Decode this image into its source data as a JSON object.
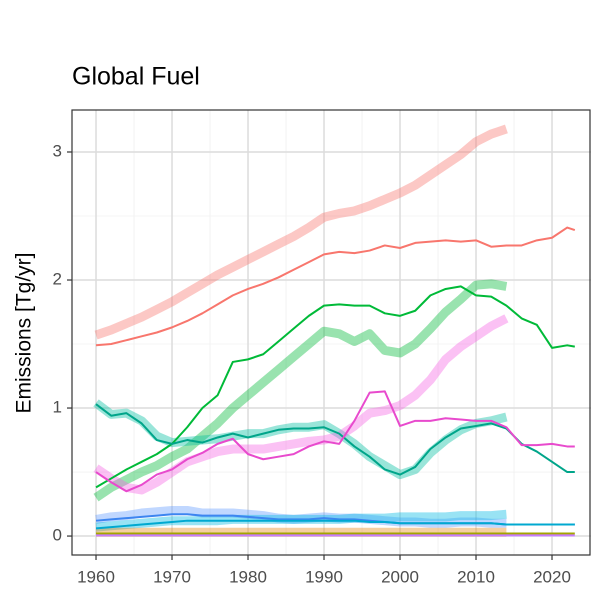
{
  "chart_data": {
    "type": "line",
    "title": "Global Fuel",
    "ylabel": "Emissions [Tg/yr]",
    "x": [
      1960,
      1962,
      1964,
      1966,
      1968,
      1970,
      1972,
      1974,
      1976,
      1978,
      1980,
      1982,
      1984,
      1986,
      1988,
      1990,
      1992,
      1994,
      1996,
      1998,
      2000,
      2002,
      2004,
      2006,
      2008,
      2010,
      2012,
      2014,
      2016,
      2018,
      2020,
      2022,
      2023
    ],
    "xlim": [
      1956.84,
      2025.13
    ],
    "ylim": [
      -0.148,
      3.328
    ],
    "xticks": [
      1960,
      1970,
      1980,
      1990,
      2000,
      2010,
      2020
    ],
    "yticks": [
      0,
      1,
      2,
      3
    ],
    "xminor": [
      1965,
      1975,
      1985,
      1995,
      2005,
      2015,
      2025
    ],
    "yminor": [
      0.5,
      1.5,
      2.5
    ],
    "grid": true,
    "series": [
      {
        "color": "#F8766D",
        "linewidth": 9,
        "opacity": 0.4,
        "values": [
          1.57,
          1.61,
          1.66,
          1.71,
          1.77,
          1.83,
          1.9,
          1.97,
          2.04,
          2.1,
          2.16,
          2.22,
          2.28,
          2.34,
          2.41,
          2.49,
          2.52,
          2.54,
          2.58,
          2.63,
          2.68,
          2.74,
          2.82,
          2.9,
          2.98,
          3.08,
          3.14,
          3.18,
          null,
          null,
          null,
          null,
          null
        ]
      },
      {
        "color": "#00BA38",
        "linewidth": 9,
        "opacity": 0.4,
        "values": [
          0.3,
          0.38,
          0.44,
          0.5,
          0.55,
          0.62,
          0.68,
          0.78,
          0.88,
          1.0,
          1.1,
          1.2,
          1.3,
          1.4,
          1.5,
          1.6,
          1.58,
          1.52,
          1.58,
          1.45,
          1.43,
          1.5,
          1.62,
          1.75,
          1.85,
          1.96,
          1.97,
          1.95,
          null,
          null,
          null,
          null,
          null
        ]
      },
      {
        "color": "#00BFA0",
        "linewidth": 9,
        "opacity": 0.4,
        "values": [
          1.04,
          0.95,
          0.96,
          0.9,
          0.78,
          0.73,
          0.74,
          0.75,
          0.76,
          0.78,
          0.8,
          0.8,
          0.83,
          0.85,
          0.85,
          0.87,
          0.8,
          0.72,
          0.62,
          0.55,
          0.48,
          0.52,
          0.65,
          0.75,
          0.83,
          0.88,
          0.9,
          0.93,
          null,
          null,
          null,
          null,
          null
        ]
      },
      {
        "color": "#F564E3",
        "linewidth": 9,
        "opacity": 0.4,
        "values": [
          0.53,
          0.45,
          0.38,
          0.36,
          0.42,
          0.5,
          0.58,
          0.62,
          0.66,
          0.68,
          0.68,
          0.68,
          0.7,
          0.72,
          0.74,
          0.75,
          0.78,
          0.86,
          0.96,
          0.98,
          1.02,
          1.1,
          1.22,
          1.38,
          1.48,
          1.56,
          1.64,
          1.7,
          null,
          null,
          null,
          null,
          null
        ]
      },
      {
        "color": "#619CFF",
        "linewidth": 9,
        "opacity": 0.4,
        "values": [
          0.13,
          0.15,
          0.16,
          0.18,
          0.19,
          0.2,
          0.2,
          0.18,
          0.18,
          0.18,
          0.17,
          0.16,
          0.14,
          0.13,
          0.14,
          0.15,
          0.14,
          0.14,
          0.13,
          0.12,
          0.11,
          0.11,
          0.1,
          0.1,
          0.11,
          0.11,
          0.1,
          0.1,
          null,
          null,
          null,
          null,
          null
        ]
      },
      {
        "color": "#00B9E3",
        "linewidth": 9,
        "opacity": 0.4,
        "values": [
          0.07,
          0.08,
          0.09,
          0.1,
          0.11,
          0.12,
          0.12,
          0.12,
          0.12,
          0.13,
          0.13,
          0.13,
          0.13,
          0.13,
          0.13,
          0.13,
          0.13,
          0.14,
          0.14,
          0.14,
          0.15,
          0.15,
          0.15,
          0.15,
          0.16,
          0.16,
          0.16,
          0.17,
          null,
          null,
          null,
          null,
          null
        ]
      },
      {
        "color": "#E68613",
        "linewidth": 9,
        "opacity": 0.4,
        "values": [
          0.03,
          0.03,
          0.03,
          0.03,
          0.03,
          0.03,
          0.03,
          0.03,
          0.03,
          0.03,
          0.03,
          0.03,
          0.03,
          0.03,
          0.03,
          0.03,
          0.03,
          0.03,
          0.03,
          0.03,
          0.03,
          0.03,
          0.03,
          0.03,
          0.03,
          0.03,
          0.03,
          0.03,
          null,
          null,
          null,
          null,
          null
        ]
      },
      {
        "color": "#F8766D",
        "linewidth": 2,
        "opacity": 1,
        "values": [
          1.49,
          1.5,
          1.53,
          1.56,
          1.59,
          1.63,
          1.68,
          1.74,
          1.81,
          1.88,
          1.93,
          1.97,
          2.02,
          2.08,
          2.14,
          2.2,
          2.22,
          2.21,
          2.23,
          2.27,
          2.25,
          2.29,
          2.3,
          2.31,
          2.3,
          2.31,
          2.26,
          2.27,
          2.27,
          2.31,
          2.33,
          2.41,
          2.39
        ]
      },
      {
        "color": "#00BA38",
        "linewidth": 2,
        "opacity": 1,
        "values": [
          0.38,
          0.45,
          0.52,
          0.58,
          0.64,
          0.72,
          0.85,
          1.0,
          1.1,
          1.36,
          1.38,
          1.42,
          1.52,
          1.62,
          1.72,
          1.8,
          1.81,
          1.8,
          1.8,
          1.74,
          1.72,
          1.76,
          1.88,
          1.93,
          1.95,
          1.88,
          1.87,
          1.8,
          1.7,
          1.65,
          1.47,
          1.49,
          1.48
        ]
      },
      {
        "color": "#00A58A",
        "linewidth": 2,
        "opacity": 1,
        "values": [
          1.03,
          0.94,
          0.96,
          0.88,
          0.75,
          0.72,
          0.75,
          0.73,
          0.77,
          0.8,
          0.77,
          0.8,
          0.83,
          0.84,
          0.84,
          0.85,
          0.8,
          0.7,
          0.62,
          0.52,
          0.48,
          0.54,
          0.68,
          0.77,
          0.84,
          0.86,
          0.88,
          0.84,
          0.72,
          0.66,
          0.58,
          0.5,
          0.5
        ]
      },
      {
        "color": "#E84ACD",
        "linewidth": 2,
        "opacity": 1,
        "values": [
          0.5,
          0.42,
          0.35,
          0.4,
          0.48,
          0.52,
          0.6,
          0.65,
          0.72,
          0.76,
          0.64,
          0.6,
          0.62,
          0.64,
          0.7,
          0.74,
          0.72,
          0.9,
          1.12,
          1.13,
          0.86,
          0.9,
          0.9,
          0.92,
          0.91,
          0.9,
          0.9,
          0.85,
          0.71,
          0.71,
          0.72,
          0.7,
          0.7
        ]
      },
      {
        "color": "#3D85F0",
        "linewidth": 2,
        "opacity": 1,
        "values": [
          0.12,
          0.13,
          0.14,
          0.15,
          0.16,
          0.17,
          0.17,
          0.16,
          0.16,
          0.16,
          0.15,
          0.14,
          0.13,
          0.13,
          0.13,
          0.14,
          0.13,
          0.13,
          0.12,
          0.11,
          0.1,
          0.1,
          0.1,
          0.1,
          0.1,
          0.1,
          0.1,
          0.09,
          0.09,
          0.09,
          0.09,
          0.09,
          0.09
        ]
      },
      {
        "color": "#00A9D0",
        "linewidth": 2,
        "opacity": 1,
        "values": [
          0.06,
          0.07,
          0.08,
          0.09,
          0.1,
          0.11,
          0.12,
          0.12,
          0.12,
          0.12,
          0.12,
          0.12,
          0.12,
          0.12,
          0.12,
          0.12,
          0.12,
          0.12,
          0.11,
          0.11,
          0.1,
          0.1,
          0.1,
          0.1,
          0.1,
          0.1,
          0.1,
          0.09,
          0.09,
          0.09,
          0.09,
          0.09,
          0.09
        ]
      },
      {
        "color": "#A3A500",
        "linewidth": 2,
        "opacity": 1,
        "values": [
          0.02,
          0.02,
          0.02,
          0.02,
          0.02,
          0.02,
          0.02,
          0.02,
          0.02,
          0.02,
          0.02,
          0.02,
          0.02,
          0.02,
          0.02,
          0.02,
          0.02,
          0.02,
          0.02,
          0.02,
          0.02,
          0.02,
          0.02,
          0.02,
          0.02,
          0.02,
          0.02,
          0.02,
          0.02,
          0.02,
          0.02,
          0.02,
          0.02
        ]
      },
      {
        "color": "#C77CFF",
        "linewidth": 2,
        "opacity": 1,
        "values": [
          0.005,
          0.005,
          0.005,
          0.005,
          0.005,
          0.005,
          0.005,
          0.005,
          0.005,
          0.005,
          0.005,
          0.005,
          0.005,
          0.005,
          0.005,
          0.005,
          0.005,
          0.005,
          0.005,
          0.005,
          0.005,
          0.005,
          0.005,
          0.005,
          0.005,
          0.005,
          0.005,
          0.005,
          0.005,
          0.005,
          0.005,
          0.005,
          0.005
        ]
      }
    ]
  }
}
